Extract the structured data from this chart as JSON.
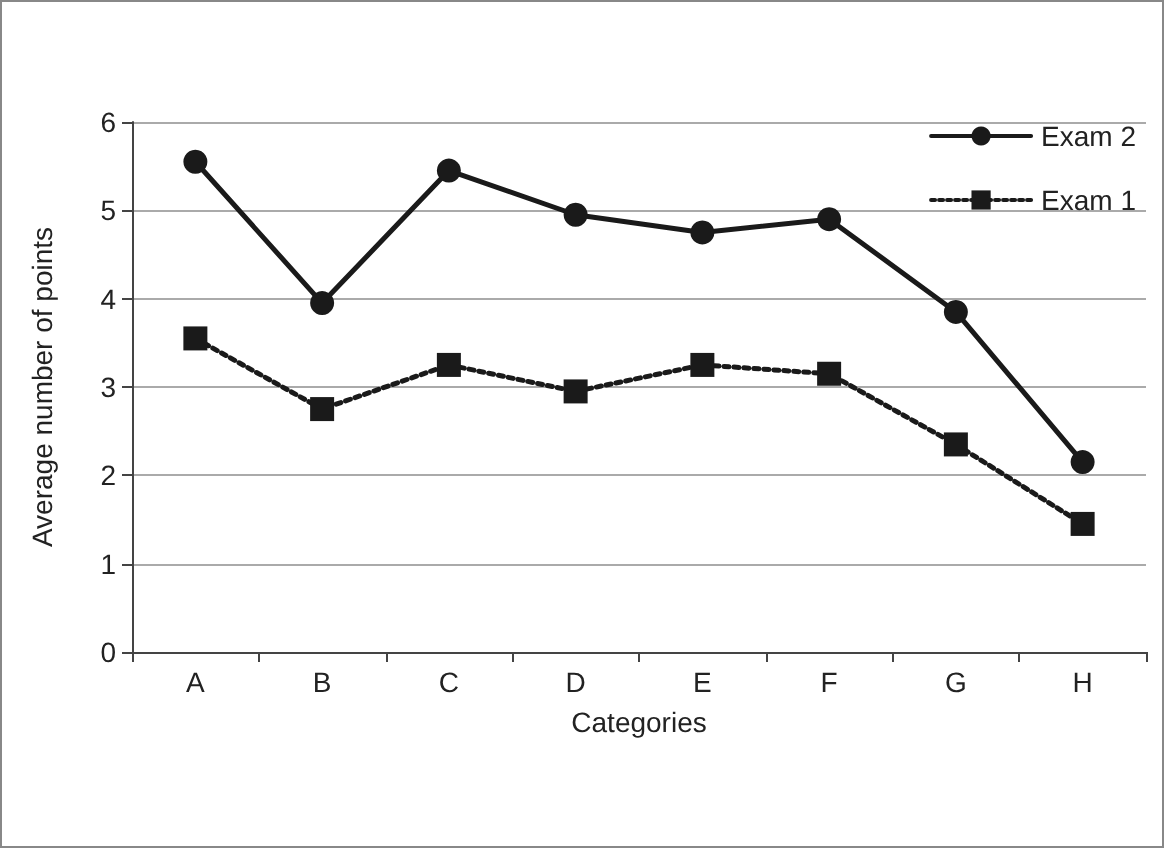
{
  "chart_data": {
    "type": "line",
    "xlabel": "Categories",
    "ylabel": "Average number of points",
    "categories": [
      "A",
      "B",
      "C",
      "D",
      "E",
      "F",
      "G",
      "H"
    ],
    "series": [
      {
        "name": "Exam 2",
        "color": "#1a1a1a",
        "marker": "circle",
        "line_style": "solid",
        "values": [
          5.55,
          3.95,
          5.45,
          4.95,
          4.75,
          4.9,
          3.85,
          2.15
        ]
      },
      {
        "name": "Exam 1",
        "color": "#1a1a1a",
        "marker": "square",
        "line_style": "dotted",
        "values": [
          3.55,
          2.75,
          3.25,
          2.95,
          3.25,
          3.15,
          2.35,
          1.45
        ]
      }
    ],
    "ylim": [
      0,
      6
    ],
    "yticks": [
      0,
      1,
      2,
      3,
      4,
      5,
      6
    ],
    "grid": "y",
    "legend": "top right"
  }
}
